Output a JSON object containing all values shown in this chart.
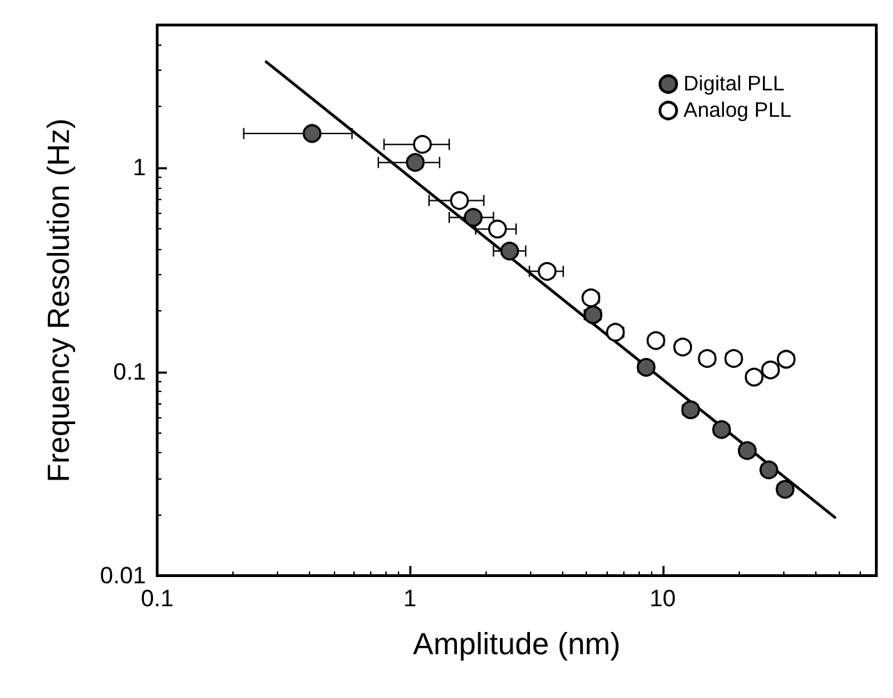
{
  "chart_data": {
    "type": "scatter",
    "xlabel": "Amplitude (nm)",
    "ylabel": "Frequency Resolution (Hz)",
    "log": "xy",
    "xlim": [
      0.1,
      70
    ],
    "xticks": [
      0.1,
      1,
      10
    ],
    "ylim": [
      0.01,
      5
    ],
    "yticks": [
      0.01,
      0.1,
      1
    ],
    "grid": false,
    "legend": "top right",
    "marker": "circle",
    "series": [
      {
        "name": "Digital PLL",
        "color": "#555555",
        "x": [
          0.41,
          1.05,
          1.78,
          2.48,
          5.3,
          8.6,
          12.9,
          17.1,
          21.6,
          26.3,
          30.5
        ],
        "values": [
          1.47,
          1.06,
          0.57,
          0.39,
          0.19,
          0.105,
          0.065,
          0.052,
          0.041,
          0.033,
          0.0265
        ],
        "xerrors": [
          [
            0.22,
            0.59
          ],
          [
            0.75,
            1.31
          ],
          [
            1.43,
            2.14
          ],
          [
            2.14,
            2.87
          ],
          [
            4.9,
            5.7
          ],
          [
            8.0,
            9.2
          ],
          [
            12.0,
            13.8
          ],
          [
            16.0,
            18.3
          ],
          [
            20.2,
            23.1
          ],
          [
            24.6,
            28.1
          ],
          [
            28.5,
            32.6
          ]
        ]
      },
      {
        "name": "Analog PLL",
        "color": "#ffffff",
        "x": [
          1.12,
          1.57,
          2.22,
          3.49,
          5.2,
          6.5,
          9.4,
          12.0,
          15.0,
          19.1,
          23.0,
          26.7,
          30.8
        ],
        "values": [
          1.3,
          0.69,
          0.5,
          0.31,
          0.23,
          0.156,
          0.142,
          0.132,
          0.116,
          0.116,
          0.094,
          0.102,
          0.115
        ],
        "xerrors": [
          [
            0.79,
            1.43
          ],
          [
            1.19,
            1.96
          ],
          [
            1.82,
            2.63
          ],
          [
            2.97,
            4.04
          ],
          [
            4.9,
            5.6
          ],
          [
            6.1,
            7.0
          ],
          [
            8.8,
            10.1
          ],
          [
            11.2,
            12.8
          ],
          [
            14.0,
            16.1
          ],
          [
            17.8,
            20.4
          ],
          [
            21.5,
            24.6
          ],
          [
            25.0,
            28.6
          ],
          [
            28.8,
            33.0
          ]
        ]
      },
      {
        "type": "line",
        "color": "#000000",
        "marker": "none",
        "line_style": "solid",
        "x": [
          0.27,
          48
        ],
        "values": [
          3.3,
          0.0193
        ]
      }
    ]
  }
}
